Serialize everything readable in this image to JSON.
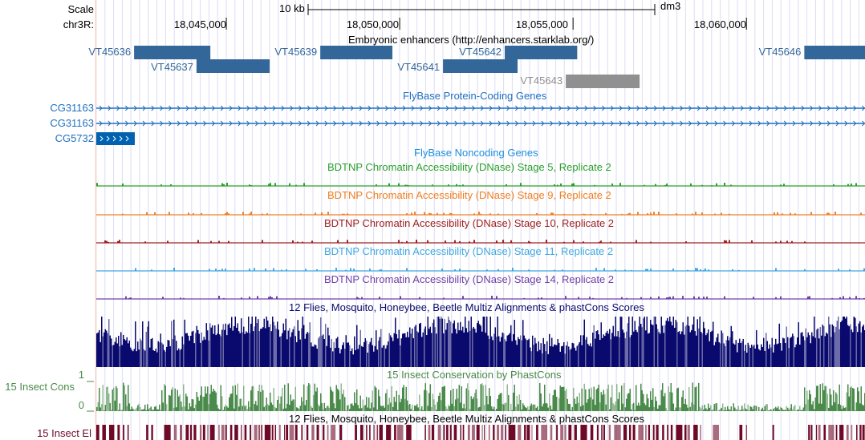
{
  "header": {
    "scale_label": "Scale",
    "scale_bar": "10 kb",
    "assembly": "dm3",
    "chrom_label": "chr3R:",
    "ticks": [
      {
        "label": "18,045,000",
        "pos": 18045000
      },
      {
        "label": "18,050,000",
        "pos": 18050000
      },
      {
        "label": "18,055,000",
        "pos": 18055000
      },
      {
        "label": "18,060,000",
        "pos": 18060000
      }
    ]
  },
  "view": {
    "start": 18041250,
    "end": 18063420
  },
  "tracks": {
    "enhancers": {
      "title": "Embryonic enhancers (http://enhancers.starklab.org/)",
      "color": "#336699",
      "gray": "#909090",
      "items": [
        {
          "name": "VT45636",
          "start": 18042340,
          "end": 18044540,
          "row": 0,
          "gray": false
        },
        {
          "name": "VT45637",
          "start": 18044140,
          "end": 18046250,
          "row": 1,
          "gray": false
        },
        {
          "name": "VT45639",
          "start": 18047710,
          "end": 18049790,
          "row": 0,
          "gray": false
        },
        {
          "name": "VT45641",
          "start": 18051250,
          "end": 18053400,
          "row": 1,
          "gray": false
        },
        {
          "name": "VT45642",
          "start": 18053030,
          "end": 18055120,
          "row": 0,
          "gray": false
        },
        {
          "name": "VT45643",
          "start": 18054790,
          "end": 18056920,
          "row": 2,
          "gray": true
        },
        {
          "name": "VT45646",
          "start": 18061670,
          "end": 18063420,
          "row": 0,
          "gray": false
        }
      ]
    },
    "genes": {
      "title": "FlyBase Protein-Coding Genes",
      "color": "#1f6fbf",
      "items": [
        {
          "name": "CG31163",
          "start": 18041250,
          "end": 18063420,
          "type": "intron"
        },
        {
          "name": "CG31163",
          "start": 18041250,
          "end": 18063420,
          "type": "intron"
        },
        {
          "name": "CG5732",
          "start": 18041250,
          "end": 18042360,
          "type": "exon"
        }
      ]
    },
    "noncoding": {
      "title": "FlyBase Noncoding Genes",
      "color": "#1f8fdf"
    },
    "dnase": [
      {
        "title": "BDTNP Chromatin Accessibility (DNase) Stage 5, Replicate 2",
        "color": "#2ca02c"
      },
      {
        "title": "BDTNP Chromatin Accessibility (DNase) Stage 9, Replicate 2",
        "color": "#f07f20"
      },
      {
        "title": "BDTNP Chromatin Accessibility (DNase) Stage 10, Replicate 2",
        "color": "#a02020"
      },
      {
        "title": "BDTNP Chromatin Accessibility (DNase) Stage 11, Replicate 2",
        "color": "#40a8e0"
      },
      {
        "title": "BDTNP Chromatin Accessibility (DNase) Stage 14, Replicate 2",
        "color": "#7040a8"
      }
    ],
    "multiz": {
      "title": "12 Flies, Mosquito, Honeybee, Beetle Multiz Alignments & phastCons Scores",
      "color": "#0a0a6e"
    },
    "cons": {
      "title": "15 Insect Conservation by PhastCons",
      "label": "15 Insect Cons",
      "ymax": "1",
      "ymin": "0",
      "color": "#4a8a4a"
    },
    "elements": {
      "title": "12 Flies, Mosquito, Honeybee, Beetle Multiz Alignments & phastCons Scores",
      "label": "15 Insect El",
      "color": "#6e0a28"
    }
  }
}
